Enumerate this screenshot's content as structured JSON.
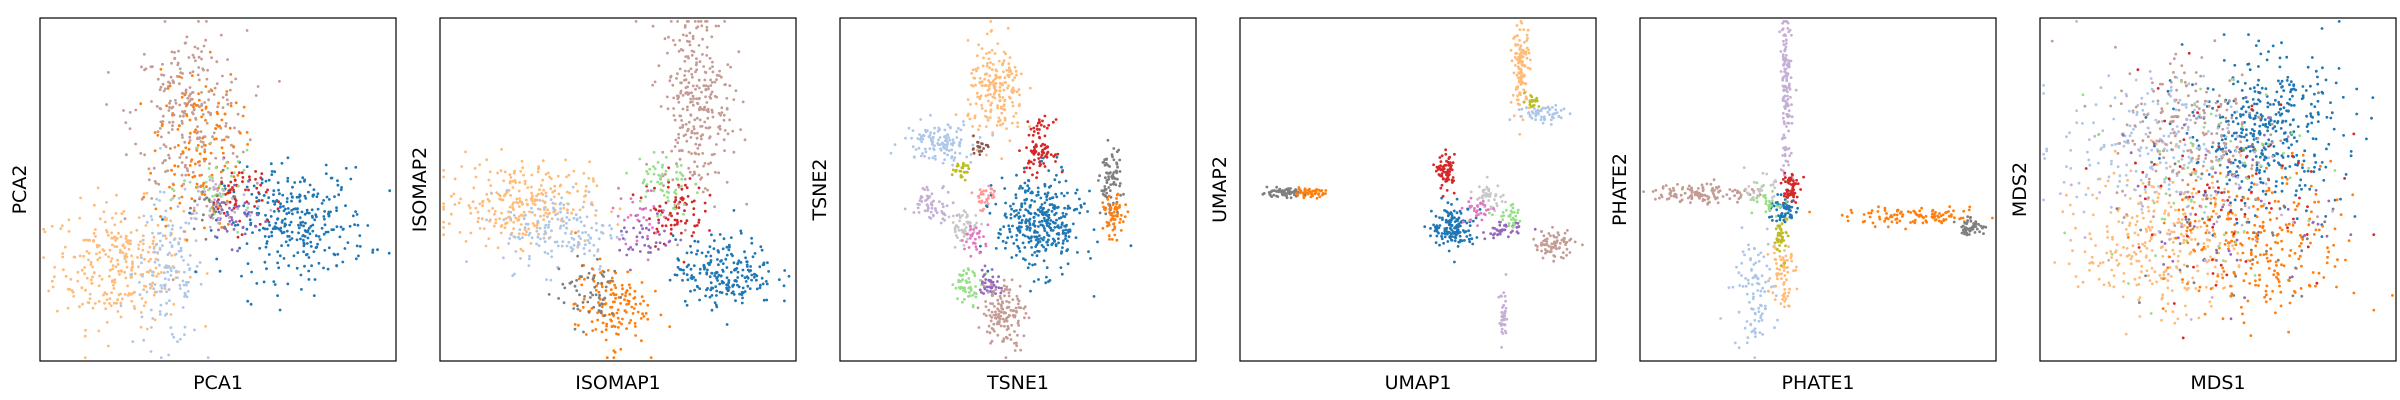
{
  "figure": {
    "panels": [
      {
        "xlabel": "PCA1",
        "ylabel": "PCA2"
      },
      {
        "xlabel": "ISOMAP1",
        "ylabel": "ISOMAP2"
      },
      {
        "xlabel": "TSNE1",
        "ylabel": "TSNE2"
      },
      {
        "xlabel": "UMAP1",
        "ylabel": "UMAP2"
      },
      {
        "xlabel": "PHATE1",
        "ylabel": "PHATE2"
      },
      {
        "xlabel": "MDS1",
        "ylabel": "MDS2"
      }
    ]
  },
  "palette": {
    "blue": "#1f77b4",
    "light_blue": "#aec7e8",
    "orange": "#ff7f0e",
    "light_orange": "#ffbb78",
    "green": "#2ca02c",
    "light_green": "#98df8a",
    "red": "#d62728",
    "pink_light": "#ff9896",
    "purple": "#9467bd",
    "lilac": "#c5b0d5",
    "brown": "#8c564b",
    "tan": "#c49c94",
    "pink": "#e377c2",
    "gray": "#7f7f7f",
    "light_gray": "#c7c7c7",
    "olive": "#bcbd22"
  },
  "chart_data": [
    {
      "type": "scatter",
      "xlabel": "PCA1",
      "ylabel": "PCA2",
      "ticks": "hidden",
      "xlim": [
        0,
        100
      ],
      "ylim": [
        0,
        100
      ],
      "clusters": [
        {
          "color": "#ffbb78",
          "center": [
            22,
            28
          ],
          "spread": [
            9,
            9
          ],
          "n": 280
        },
        {
          "color": "#aec7e8",
          "center": [
            36,
            26
          ],
          "spread": [
            5,
            11
          ],
          "n": 150
        },
        {
          "color": "#c49c94",
          "center": [
            42,
            72
          ],
          "spread": [
            8,
            12
          ],
          "n": 260
        },
        {
          "color": "#ff7f0e",
          "center": [
            44,
            62
          ],
          "spread": [
            6,
            12
          ],
          "n": 140
        },
        {
          "color": "#1f77b4",
          "center": [
            72,
            40
          ],
          "spread": [
            10,
            8
          ],
          "n": 320
        },
        {
          "color": "#d62728",
          "center": [
            56,
            48
          ],
          "spread": [
            4,
            5
          ],
          "n": 60
        },
        {
          "color": "#9467bd",
          "center": [
            54,
            42
          ],
          "spread": [
            4,
            4
          ],
          "n": 40
        },
        {
          "color": "#98df8a",
          "center": [
            50,
            50
          ],
          "spread": [
            5,
            5
          ],
          "n": 40
        },
        {
          "color": "#7f7f7f",
          "center": [
            48,
            44
          ],
          "spread": [
            4,
            4
          ],
          "n": 30
        },
        {
          "color": "#c5b0d5",
          "center": [
            50,
            46
          ],
          "spread": [
            5,
            5
          ],
          "n": 40
        }
      ]
    },
    {
      "type": "scatter",
      "xlabel": "ISOMAP1",
      "ylabel": "ISOMAP2",
      "ticks": "hidden",
      "xlim": [
        0,
        100
      ],
      "ylim": [
        0,
        100
      ],
      "clusters": [
        {
          "color": "#ffbb78",
          "center": [
            22,
            46
          ],
          "spread": [
            10,
            6
          ],
          "n": 260
        },
        {
          "color": "#aec7e8",
          "center": [
            34,
            38
          ],
          "spread": [
            8,
            6
          ],
          "n": 160
        },
        {
          "color": "#c49c94",
          "center": [
            72,
            76
          ],
          "spread": [
            5,
            14
          ],
          "n": 300
        },
        {
          "color": "#ff7f0e",
          "center": [
            48,
            16
          ],
          "spread": [
            5,
            6
          ],
          "n": 140
        },
        {
          "color": "#7f7f7f",
          "center": [
            42,
            20
          ],
          "spread": [
            5,
            5
          ],
          "n": 60
        },
        {
          "color": "#1f77b4",
          "center": [
            80,
            26
          ],
          "spread": [
            7,
            5
          ],
          "n": 220
        },
        {
          "color": "#d62728",
          "center": [
            66,
            44
          ],
          "spread": [
            4,
            5
          ],
          "n": 80
        },
        {
          "color": "#98df8a",
          "center": [
            62,
            52
          ],
          "spread": [
            4,
            5
          ],
          "n": 60
        },
        {
          "color": "#9467bd",
          "center": [
            58,
            36
          ],
          "spread": [
            4,
            4
          ],
          "n": 40
        },
        {
          "color": "#e377c2",
          "center": [
            56,
            42
          ],
          "spread": [
            4,
            4
          ],
          "n": 30
        }
      ]
    },
    {
      "type": "scatter",
      "xlabel": "TSNE1",
      "ylabel": "TSNE2",
      "ticks": "hidden",
      "xlim": [
        0,
        100
      ],
      "ylim": [
        0,
        100
      ],
      "clusters": [
        {
          "color": "#ffbb78",
          "center": [
            44,
            78
          ],
          "spread": [
            4,
            7
          ],
          "n": 200
        },
        {
          "color": "#aec7e8",
          "center": [
            28,
            64
          ],
          "spread": [
            5,
            3
          ],
          "n": 120
        },
        {
          "color": "#d62728",
          "center": [
            56,
            62
          ],
          "spread": [
            2,
            4
          ],
          "n": 90
        },
        {
          "color": "#1f77b4",
          "center": [
            56,
            40
          ],
          "spread": [
            6,
            7
          ],
          "n": 360
        },
        {
          "color": "#7f7f7f",
          "center": [
            76,
            52
          ],
          "spread": [
            1.5,
            5
          ],
          "n": 80
        },
        {
          "color": "#ff7f0e",
          "center": [
            77,
            42
          ],
          "spread": [
            1.5,
            3
          ],
          "n": 60
        },
        {
          "color": "#c5b0d5",
          "center": [
            26,
            46
          ],
          "spread": [
            3,
            2.5
          ],
          "n": 60
        },
        {
          "color": "#c7c7c7",
          "center": [
            35,
            39
          ],
          "spread": [
            2,
            2.5
          ],
          "n": 50
        },
        {
          "color": "#e377c2",
          "center": [
            38,
            36
          ],
          "spread": [
            2,
            2
          ],
          "n": 30
        },
        {
          "color": "#98df8a",
          "center": [
            36,
            22
          ],
          "spread": [
            2,
            2.5
          ],
          "n": 50
        },
        {
          "color": "#9467bd",
          "center": [
            42,
            23
          ],
          "spread": [
            1.5,
            2
          ],
          "n": 40
        },
        {
          "color": "#c49c94",
          "center": [
            46,
            14
          ],
          "spread": [
            3,
            5
          ],
          "n": 140
        },
        {
          "color": "#bcbd22",
          "center": [
            34,
            56
          ],
          "spread": [
            1.2,
            1.5
          ],
          "n": 25
        },
        {
          "color": "#8c564b",
          "center": [
            39,
            62
          ],
          "spread": [
            1.2,
            1.2
          ],
          "n": 20
        },
        {
          "color": "#ff9896",
          "center": [
            41,
            48
          ],
          "spread": [
            2,
            2
          ],
          "n": 30
        }
      ]
    },
    {
      "type": "scatter",
      "xlabel": "UMAP1",
      "ylabel": "UMAP2",
      "ticks": "hidden",
      "xlim": [
        0,
        100
      ],
      "ylim": [
        0,
        100
      ],
      "clusters": [
        {
          "color": "#7f7f7f",
          "center": [
            12,
            49
          ],
          "spread": [
            3,
            0.6
          ],
          "n": 80
        },
        {
          "color": "#ff7f0e",
          "center": [
            19,
            49
          ],
          "spread": [
            2.5,
            0.6
          ],
          "n": 50
        },
        {
          "color": "#ffbb78",
          "center": [
            79,
            86
          ],
          "spread": [
            1.2,
            6
          ],
          "n": 120
        },
        {
          "color": "#aec7e8",
          "center": [
            86,
            72
          ],
          "spread": [
            4,
            1.5
          ],
          "n": 60
        },
        {
          "color": "#bcbd22",
          "center": [
            82,
            76
          ],
          "spread": [
            1,
            1
          ],
          "n": 20
        },
        {
          "color": "#1f77b4",
          "center": [
            60,
            39
          ],
          "spread": [
            3,
            3
          ],
          "n": 150
        },
        {
          "color": "#d62728",
          "center": [
            58,
            55
          ],
          "spread": [
            1.2,
            2.5
          ],
          "n": 70
        },
        {
          "color": "#c49c94",
          "center": [
            88,
            34
          ],
          "spread": [
            3,
            2
          ],
          "n": 80
        },
        {
          "color": "#9467bd",
          "center": [
            74,
            38
          ],
          "spread": [
            2.5,
            1.2
          ],
          "n": 40
        },
        {
          "color": "#c7c7c7",
          "center": [
            70,
            48
          ],
          "spread": [
            2,
            2
          ],
          "n": 40
        },
        {
          "color": "#98df8a",
          "center": [
            76,
            42
          ],
          "spread": [
            2,
            1.5
          ],
          "n": 30
        },
        {
          "color": "#c5b0d5",
          "center": [
            74,
            12
          ],
          "spread": [
            0.6,
            4
          ],
          "n": 40
        },
        {
          "color": "#e377c2",
          "center": [
            67,
            44
          ],
          "spread": [
            2,
            2
          ],
          "n": 30
        }
      ]
    },
    {
      "type": "scatter",
      "xlabel": "PHATE1",
      "ylabel": "PHATE2",
      "ticks": "hidden",
      "xlim": [
        0,
        100
      ],
      "ylim": [
        0,
        100
      ],
      "clusters": [
        {
          "color": "#c5b0d5",
          "center": [
            41,
            78
          ],
          "spread": [
            0.8,
            12
          ],
          "n": 140
        },
        {
          "color": "#c49c94",
          "center": [
            18,
            49
          ],
          "spread": [
            7,
            1.5
          ],
          "n": 120
        },
        {
          "color": "#ff7f0e",
          "center": [
            78,
            42
          ],
          "spread": [
            10,
            1.2
          ],
          "n": 110
        },
        {
          "color": "#7f7f7f",
          "center": [
            93,
            39
          ],
          "spread": [
            2,
            1.2
          ],
          "n": 50
        },
        {
          "color": "#aec7e8",
          "center": [
            32,
            20
          ],
          "spread": [
            3,
            8
          ],
          "n": 100
        },
        {
          "color": "#ffbb78",
          "center": [
            40,
            28
          ],
          "spread": [
            1.5,
            6
          ],
          "n": 70
        },
        {
          "color": "#d62728",
          "center": [
            42,
            50
          ],
          "spread": [
            1.2,
            3
          ],
          "n": 60
        },
        {
          "color": "#1f77b4",
          "center": [
            40,
            44
          ],
          "spread": [
            2,
            2
          ],
          "n": 60
        },
        {
          "color": "#bcbd22",
          "center": [
            40,
            36
          ],
          "spread": [
            1,
            3
          ],
          "n": 40
        },
        {
          "color": "#98df8a",
          "center": [
            36,
            46
          ],
          "spread": [
            2,
            2
          ],
          "n": 30
        },
        {
          "color": "#c7c7c7",
          "center": [
            34,
            50
          ],
          "spread": [
            2,
            2
          ],
          "n": 30
        }
      ]
    },
    {
      "type": "scatter",
      "xlabel": "MDS1",
      "ylabel": "MDS2",
      "ticks": "hidden",
      "xlim": [
        0,
        100
      ],
      "ylim": [
        0,
        100
      ],
      "clusters": [
        {
          "color": "#1f77b4",
          "center": [
            63,
            67
          ],
          "spread": [
            11,
            11
          ],
          "n": 420
        },
        {
          "color": "#ffbb78",
          "center": [
            34,
            36
          ],
          "spread": [
            11,
            11
          ],
          "n": 320
        },
        {
          "color": "#ff7f0e",
          "center": [
            63,
            34
          ],
          "spread": [
            13,
            11
          ],
          "n": 260
        },
        {
          "color": "#aec7e8",
          "center": [
            30,
            62
          ],
          "spread": [
            12,
            10
          ],
          "n": 200
        },
        {
          "color": "#c49c94",
          "center": [
            44,
            68
          ],
          "spread": [
            12,
            12
          ],
          "n": 200
        },
        {
          "color": "#d62728",
          "center": [
            50,
            50
          ],
          "spread": [
            16,
            16
          ],
          "n": 80
        },
        {
          "color": "#98df8a",
          "center": [
            46,
            56
          ],
          "spread": [
            14,
            14
          ],
          "n": 60
        },
        {
          "color": "#7f7f7f",
          "center": [
            56,
            40
          ],
          "spread": [
            14,
            14
          ],
          "n": 60
        },
        {
          "color": "#9467bd",
          "center": [
            50,
            46
          ],
          "spread": [
            15,
            15
          ],
          "n": 50
        },
        {
          "color": "#c5b0d5",
          "center": [
            40,
            50
          ],
          "spread": [
            15,
            15
          ],
          "n": 50
        }
      ]
    }
  ]
}
